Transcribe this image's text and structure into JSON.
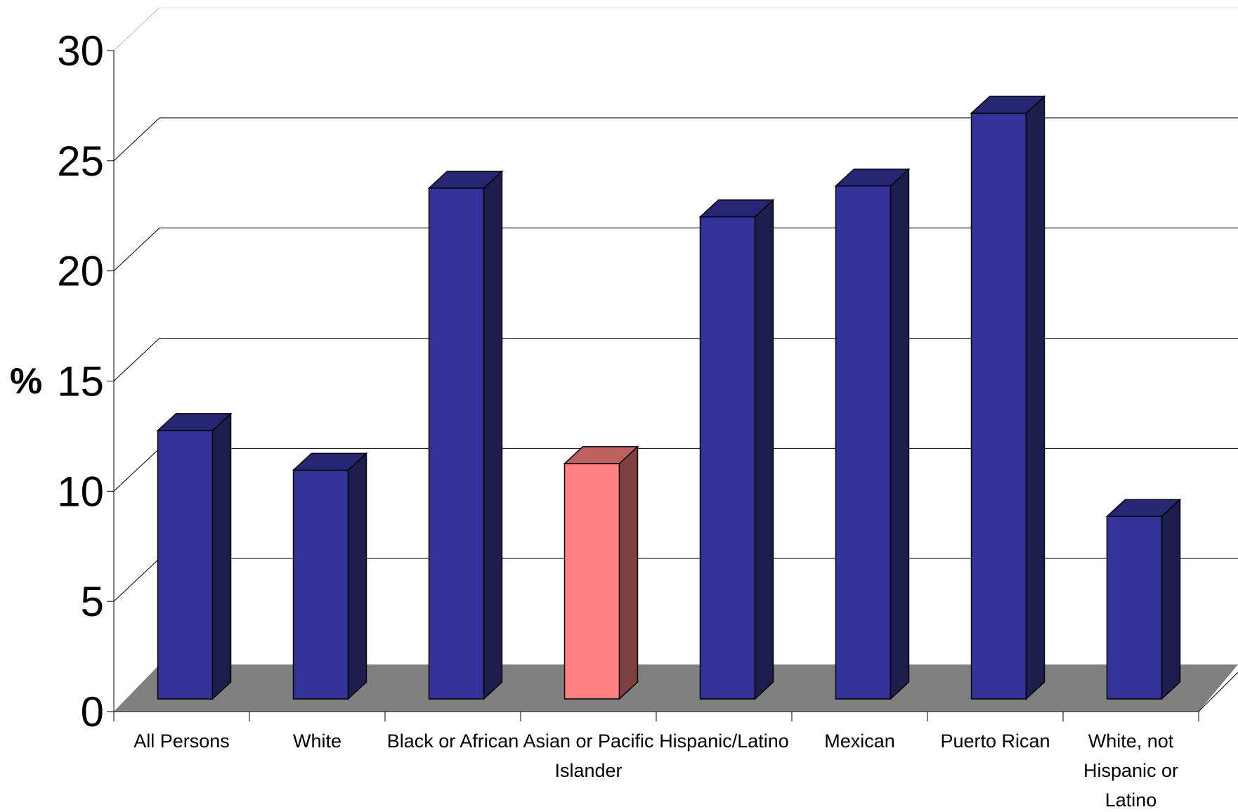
{
  "chart_data": {
    "type": "bar",
    "title": "",
    "xlabel": "",
    "ylabel": "%",
    "ylim": [
      0,
      30
    ],
    "yticks": [
      "0",
      "5",
      "10",
      "15",
      "20",
      "25",
      "30"
    ],
    "grid": true,
    "categories": [
      [
        "All Persons"
      ],
      [
        "White"
      ],
      [
        "Black or African"
      ],
      [
        "Asian or Pacific",
        "Islander"
      ],
      [
        "Hispanic/Latino"
      ],
      [
        "Mexican"
      ],
      [
        "Puerto Rican"
      ],
      [
        "White, not",
        "Hispanic or",
        "Latino"
      ]
    ],
    "values": [
      11.8,
      10.0,
      22.8,
      10.3,
      21.5,
      22.9,
      26.2,
      7.9
    ],
    "highlight_index": 3,
    "colors": {
      "bar_front": "#333399",
      "bar_side": "#1e1e4e",
      "bar_top": "#262673",
      "highlight_front": "#ff8080",
      "highlight_side": "#803f3f",
      "highlight_top": "#bf6060",
      "floor": "#808080",
      "grid": "#000000"
    }
  }
}
